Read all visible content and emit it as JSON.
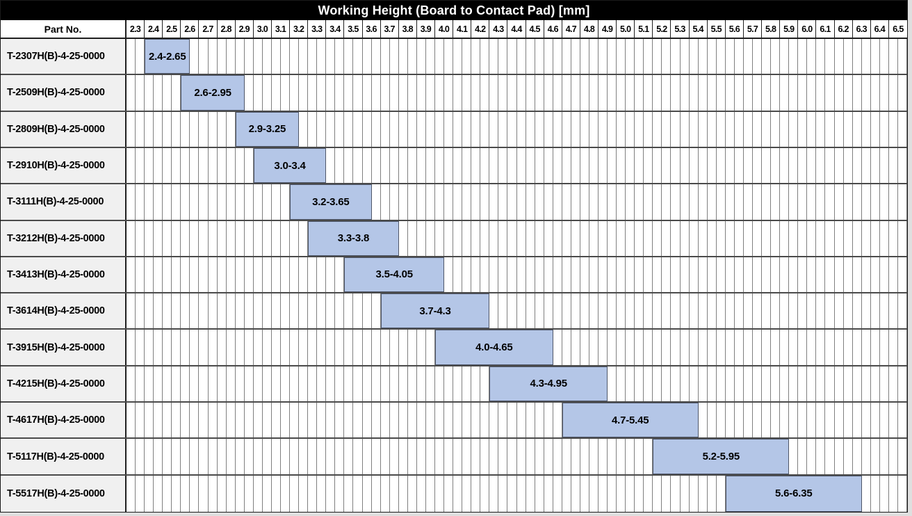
{
  "header": {
    "part_no_label": "Part No."
  },
  "chart_data": {
    "type": "bar",
    "subtype": "horizontal-range-gantt",
    "title": "Working Height (Board to Contact Pad) [mm]",
    "axis": {
      "min": 2.3,
      "max": 6.6,
      "major_step": 0.1,
      "minor_step": 0.05,
      "tick_labels": [
        "2.3",
        "2.4",
        "2.5",
        "2.6",
        "2.7",
        "2.8",
        "2.9",
        "3.0",
        "3.1",
        "3.2",
        "3.3",
        "3.4",
        "3.5",
        "3.6",
        "3.7",
        "3.8",
        "3.9",
        "4.0",
        "4.1",
        "4.2",
        "4.3",
        "4.4",
        "4.5",
        "4.6",
        "4.7",
        "4.8",
        "4.9",
        "5.0",
        "5.1",
        "5.2",
        "5.3",
        "5.4",
        "5.5",
        "5.6",
        "5.7",
        "5.8",
        "5.9",
        "6.0",
        "6.1",
        "6.2",
        "6.3",
        "6.4",
        "6.5"
      ]
    },
    "rows": [
      {
        "part_no": "T-2307H(B)-4-25-0000",
        "start": 2.4,
        "end": 2.65,
        "label": "2.4-2.65"
      },
      {
        "part_no": "T-2509H(B)-4-25-0000",
        "start": 2.6,
        "end": 2.95,
        "label": "2.6-2.95"
      },
      {
        "part_no": "T-2809H(B)-4-25-0000",
        "start": 2.9,
        "end": 3.25,
        "label": "2.9-3.25"
      },
      {
        "part_no": "T-2910H(B)-4-25-0000",
        "start": 3.0,
        "end": 3.4,
        "label": "3.0-3.4"
      },
      {
        "part_no": "T-3111H(B)-4-25-0000",
        "start": 3.2,
        "end": 3.65,
        "label": "3.2-3.65"
      },
      {
        "part_no": "T-3212H(B)-4-25-0000",
        "start": 3.3,
        "end": 3.8,
        "label": "3.3-3.8"
      },
      {
        "part_no": "T-3413H(B)-4-25-0000",
        "start": 3.5,
        "end": 4.05,
        "label": "3.5-4.05"
      },
      {
        "part_no": "T-3614H(B)-4-25-0000",
        "start": 3.7,
        "end": 4.3,
        "label": "3.7-4.3"
      },
      {
        "part_no": "T-3915H(B)-4-25-0000",
        "start": 4.0,
        "end": 4.65,
        "label": "4.0-4.65"
      },
      {
        "part_no": "T-4215H(B)-4-25-0000",
        "start": 4.3,
        "end": 4.95,
        "label": "4.3-4.95"
      },
      {
        "part_no": "T-4617H(B)-4-25-0000",
        "start": 4.7,
        "end": 5.45,
        "label": "4.7-5.45"
      },
      {
        "part_no": "T-5117H(B)-4-25-0000",
        "start": 5.2,
        "end": 5.95,
        "label": "5.2-5.95"
      },
      {
        "part_no": "T-5517H(B)-4-25-0000",
        "start": 5.6,
        "end": 6.35,
        "label": "5.6-6.35"
      }
    ]
  },
  "colors": {
    "title_bg": "#000000",
    "title_text": "#FFFFFF",
    "bar_fill": "#B4C6E7",
    "bar_border": "#4E5668",
    "part_cell_bg": "#F0F0F0",
    "grid_line": "#7F7F7F",
    "row_border": "#4A4A4A",
    "header_border": "#1F1F1F",
    "page_bg": "#DFDFDF"
  }
}
